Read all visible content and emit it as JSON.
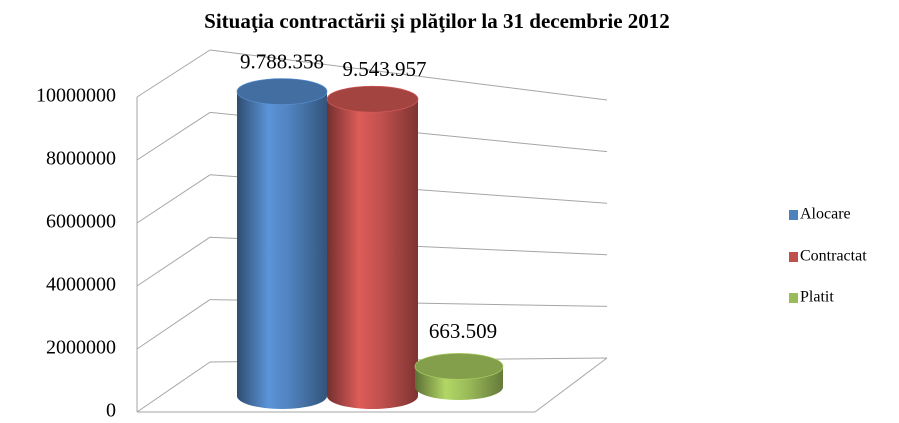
{
  "chart_data": {
    "type": "bar",
    "title": "Situaţia contractării şi plăţilor la 31 decembrie 2012",
    "categories": [
      null
    ],
    "series": [
      {
        "name": "Alocare",
        "color": "#4f81bd",
        "values": [
          9788358
        ],
        "value_labels": [
          "9.788.358"
        ]
      },
      {
        "name": "Contractat",
        "color": "#c0504d",
        "values": [
          9543957
        ],
        "value_labels": [
          "9.543.957"
        ]
      },
      {
        "name": "Platit",
        "color": "#9bbb59",
        "values": [
          663509
        ],
        "value_labels": [
          "663.509"
        ]
      }
    ],
    "ylim": [
      0,
      10000000
    ],
    "yticks": [
      0,
      2000000,
      4000000,
      6000000,
      8000000,
      10000000
    ],
    "grid": true,
    "legend": "right"
  }
}
